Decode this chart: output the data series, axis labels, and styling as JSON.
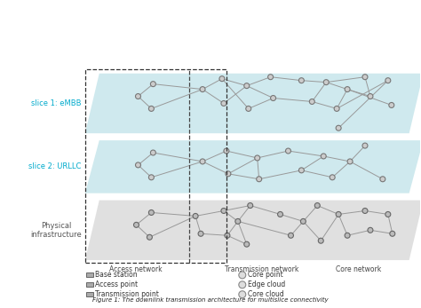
{
  "title": "Figure 1: The downlink transmission architecture for multislice connectivity",
  "slice1_label": "slice 1: eMBB",
  "slice2_label": "slice 2: URLLC",
  "physical_label": "Physical\ninfrastructure",
  "access_network_label": "Access network",
  "transmission_network_label": "Transmission network",
  "core_network_label": "Core network",
  "slice1_color": "#a8d8e0",
  "slice2_color": "#a8d8e0",
  "physical_color": "#c8c8c8",
  "legend_items_left": [
    "Base station",
    "Access point",
    "Transmission point"
  ],
  "legend_items_right": [
    "Core point",
    "Edge cloud",
    "Core cloud"
  ],
  "node_color": "#cccccc",
  "node_edge_color": "#777777",
  "line_color": "#999999",
  "dashed_border_color": "#444444",
  "label_color_slice": "#00aacc",
  "label_color_physical": "#555555",
  "background_color": "#ffffff"
}
